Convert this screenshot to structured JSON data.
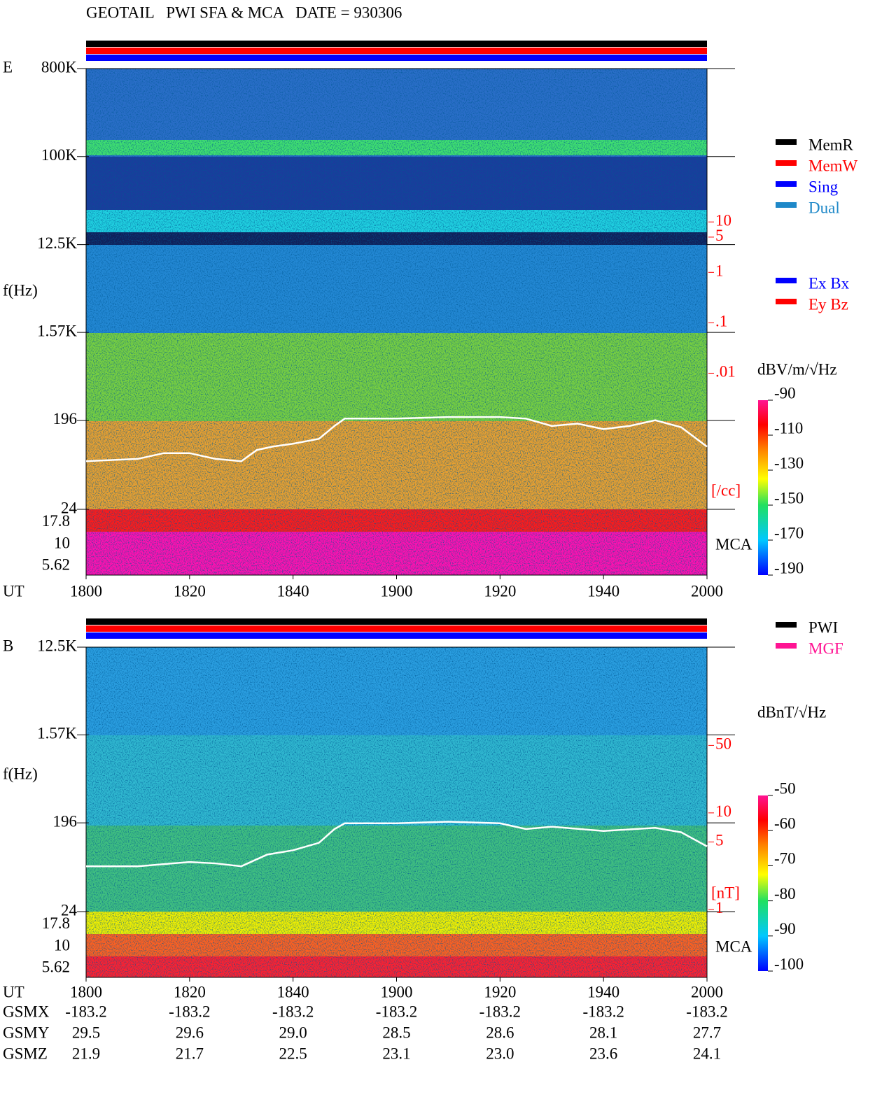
{
  "title": "GEOTAIL   PWI SFA & MCA   DATE = 930306",
  "chart_data": [
    {
      "type": "spectrogram",
      "panel_label": "E",
      "y_label": "f(Hz)",
      "x_label": "UT",
      "xlim": [
        0,
        120
      ],
      "xticks": [
        {
          "value": 0,
          "label": "1800"
        },
        {
          "value": 20,
          "label": "1820"
        },
        {
          "value": 40,
          "label": "1840"
        },
        {
          "value": 60,
          "label": "1900"
        },
        {
          "value": 80,
          "label": "1920"
        },
        {
          "value": 100,
          "label": "1940"
        },
        {
          "value": 120,
          "label": "2000"
        }
      ],
      "ylim": [
        24,
        800000
      ],
      "ylog": true,
      "yticks": [
        {
          "value": 800000,
          "label": "800K"
        },
        {
          "value": 100000,
          "label": "100K"
        },
        {
          "value": 12500,
          "label": "12.5K"
        },
        {
          "value": 1570,
          "label": "1.57K"
        },
        196,
        24
      ],
      "mca_label": "MCA",
      "mca_channels": [
        17.8,
        10,
        5.62
      ],
      "y2lim": [
        2e-05,
        11000
      ],
      "y2log": true,
      "y2_label": "[/cc]",
      "y2ticks": [
        10,
        5,
        1,
        {
          "value": 0.1,
          "label": ".1"
        },
        {
          "value": 0.01,
          "label": ".01"
        }
      ],
      "series": [
        {
          "color": "#ffffff",
          "axis": "y2",
          "x": [
            0,
            10,
            15,
            20,
            25,
            30,
            33,
            36,
            40,
            45,
            48,
            50,
            60,
            70,
            80,
            85,
            90,
            95,
            100,
            105,
            110,
            115,
            120
          ],
          "values": [
            0.00018,
            0.0002,
            0.00026,
            0.00026,
            0.0002,
            0.00018,
            0.0003,
            0.00035,
            0.0004,
            0.0005,
            0.0009,
            0.00126,
            0.00126,
            0.00135,
            0.00135,
            0.00126,
            0.0009,
            0.001,
            0.00078,
            0.0009,
            0.00117,
            0.00085,
            0.00035
          ]
        }
      ],
      "colorbar": {
        "label": "dBV/m/√Hz",
        "lim": [
          -190,
          -90
        ],
        "ticks": [
          -90,
          -110,
          -130,
          -150,
          -170,
          -190
        ]
      },
      "legends": [
        [
          {
            "name": "MemR",
            "color": "#000000"
          },
          {
            "name": "MemW",
            "color": "#ff0000"
          },
          {
            "name": "Sing",
            "color": "#0000ff"
          },
          {
            "name": "Dual",
            "color": "#1e88c8"
          }
        ],
        [
          {
            "name": "Ex Bx",
            "color": "#0000ff"
          },
          {
            "name": "Ey Bz",
            "color": "#ff0000"
          }
        ]
      ]
    },
    {
      "type": "spectrogram",
      "panel_label": "B",
      "y_label": "f(Hz)",
      "x_label": "UT",
      "xlim": [
        0,
        120
      ],
      "xticks": [
        {
          "value": 0,
          "label": "1800"
        },
        {
          "value": 20,
          "label": "1820"
        },
        {
          "value": 40,
          "label": "1840"
        },
        {
          "value": 60,
          "label": "1900"
        },
        {
          "value": 80,
          "label": "1920"
        },
        {
          "value": 100,
          "label": "1940"
        },
        {
          "value": 120,
          "label": "2000"
        }
      ],
      "ylim": [
        24,
        12500
      ],
      "ylog": true,
      "yticks": [
        {
          "value": 12500,
          "label": "12.5K"
        },
        {
          "value": 1570,
          "label": "1.57K"
        },
        196,
        24
      ],
      "mca_label": "MCA",
      "mca_channels": [
        17.8,
        10,
        5.62
      ],
      "y2lim": [
        0.95,
        520
      ],
      "y2log": true,
      "y2_label": "[nT]",
      "y2ticks": [
        50,
        10,
        5,
        1
      ],
      "series": [
        {
          "color": "#ffffff",
          "axis": "y2",
          "x": [
            0,
            10,
            20,
            25,
            30,
            35,
            40,
            45,
            48,
            50,
            60,
            70,
            80,
            85,
            90,
            100,
            110,
            115,
            120
          ],
          "values": [
            2.8,
            2.8,
            3.1,
            3.0,
            2.8,
            3.7,
            4.1,
            4.9,
            6.8,
            7.8,
            7.8,
            8.1,
            7.8,
            6.8,
            7.2,
            6.5,
            7.0,
            6.3,
            4.5
          ]
        }
      ],
      "colorbar": {
        "label": "dBnT/√Hz",
        "lim": [
          -100,
          -50
        ],
        "ticks": [
          -50,
          -60,
          -70,
          -80,
          -90,
          -100
        ]
      },
      "legends": [
        [
          {
            "name": "PWI",
            "color": "#000000"
          },
          {
            "name": "MGF",
            "color": "#ff1493"
          }
        ]
      ]
    }
  ],
  "orbit_table": {
    "rows": [
      {
        "name": "GSMX",
        "values": [
          "-183.2",
          "-183.2",
          "-183.2",
          "-183.2",
          "-183.2",
          "-183.2",
          "-183.2"
        ]
      },
      {
        "name": "GSMY",
        "values": [
          "29.5",
          "29.6",
          "29.0",
          "28.5",
          "28.6",
          "28.1",
          "27.7"
        ]
      },
      {
        "name": "GSMZ",
        "values": [
          "21.9",
          "21.7",
          "22.5",
          "23.1",
          "23.0",
          "23.6",
          "24.1"
        ]
      }
    ]
  }
}
